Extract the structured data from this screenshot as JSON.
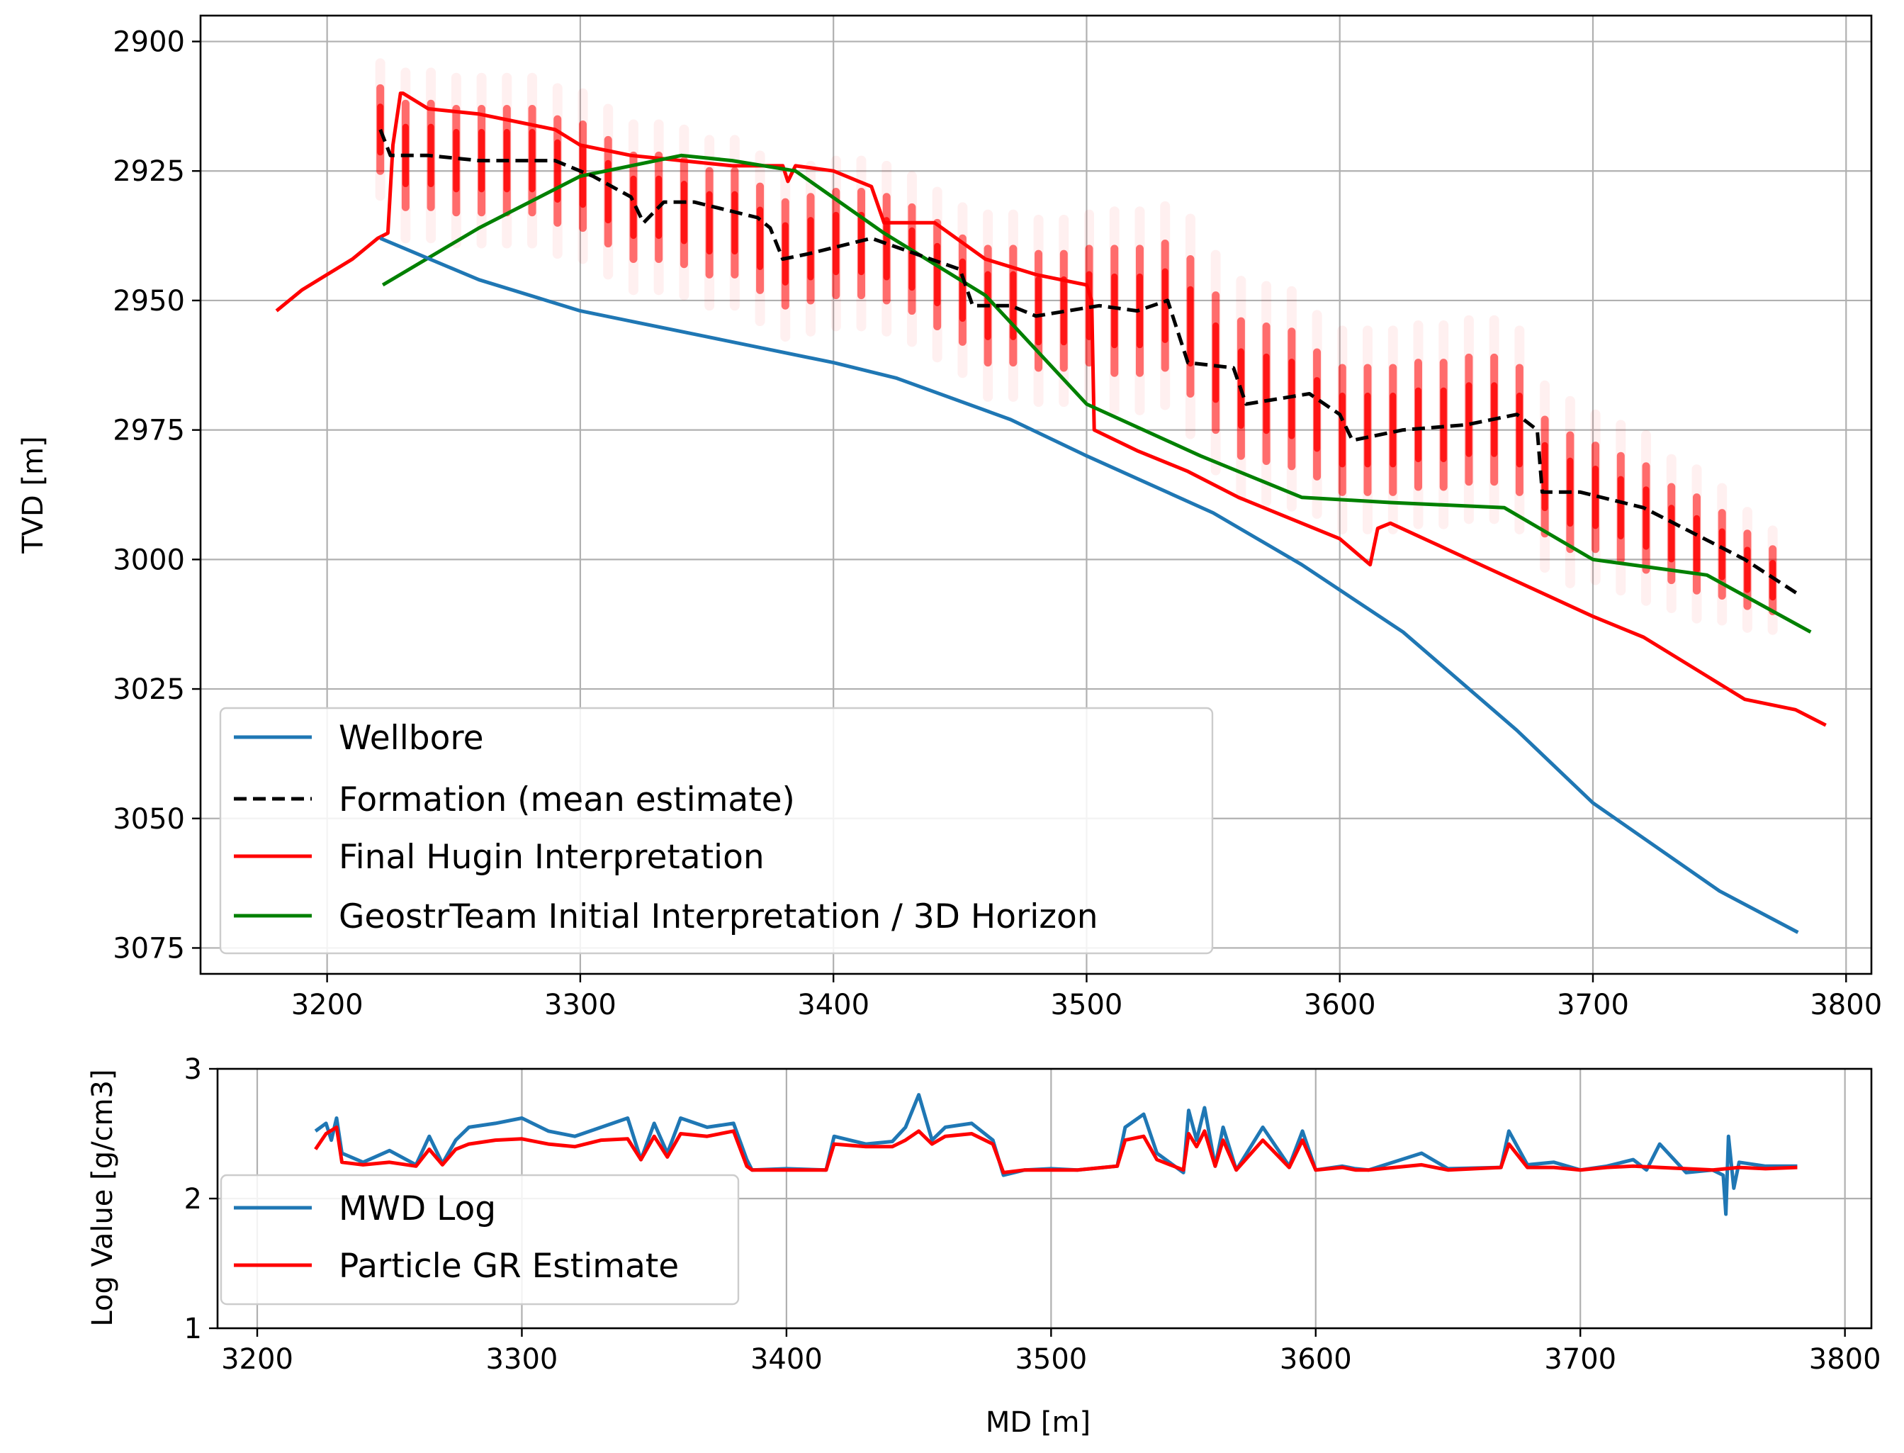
{
  "chart_data": [
    {
      "type": "line",
      "panel": "top",
      "title": "",
      "xlabel": "",
      "ylabel": "TVD [m]",
      "xlim": [
        3150,
        3810
      ],
      "ylim": [
        3080,
        2895
      ],
      "y_inverted": true,
      "grid": true,
      "x_ticks": [
        3200,
        3300,
        3400,
        3500,
        3600,
        3700,
        3800
      ],
      "x_tick_labels": [
        "3200",
        "3300",
        "3400",
        "3500",
        "3600",
        "3700",
        "3800"
      ],
      "y_ticks": [
        2900,
        2925,
        2950,
        2975,
        3000,
        3025,
        3050,
        3075
      ],
      "y_tick_labels": [
        "2900",
        "2925",
        "2950",
        "2975",
        "3000",
        "3025",
        "3050",
        "3075"
      ],
      "legend_position": "lower-left",
      "series": [
        {
          "name": "Wellbore",
          "color": "#1f77b4",
          "style": "solid",
          "x": [
            3221,
            3260,
            3300,
            3350,
            3400,
            3425,
            3470,
            3500,
            3550,
            3585,
            3625,
            3670,
            3700,
            3750,
            3781
          ],
          "y": [
            2938,
            2946,
            2952,
            2957,
            2962,
            2965,
            2973,
            2980,
            2991,
            3001,
            3014,
            3033,
            3047,
            3064,
            3072
          ]
        },
        {
          "name": "Formation (mean estimate)",
          "color": "#000000",
          "style": "dashed",
          "x": [
            3221,
            3225,
            3240,
            3260,
            3290,
            3305,
            3320,
            3325,
            3333,
            3345,
            3370,
            3375,
            3380,
            3390,
            3415,
            3450,
            3455,
            3470,
            3480,
            3505,
            3520,
            3532,
            3540,
            3558,
            3563,
            3588,
            3600,
            3605,
            3625,
            3650,
            3670,
            3678,
            3680,
            3695,
            3720,
            3740,
            3760,
            3782
          ],
          "y": [
            2917,
            2922,
            2922,
            2923,
            2923,
            2926,
            2930,
            2935,
            2931,
            2931,
            2934,
            2936,
            2942,
            2941,
            2938,
            2944,
            2951,
            2951,
            2953,
            2951,
            2952,
            2950,
            2962,
            2963,
            2970,
            2968,
            2972,
            2977,
            2975,
            2974,
            2972,
            2975,
            2987,
            2987,
            2990,
            2995,
            3000,
            3007
          ]
        },
        {
          "name": "Final Hugin Interpretation",
          "color": "#ff0000",
          "style": "solid",
          "x": [
            3180,
            3190,
            3200,
            3210,
            3220,
            3224,
            3226,
            3229,
            3230,
            3240,
            3260,
            3280,
            3290,
            3300,
            3320,
            3340,
            3360,
            3380,
            3382,
            3385,
            3400,
            3410,
            3415,
            3420,
            3440,
            3460,
            3480,
            3500,
            3502,
            3503,
            3520,
            3540,
            3560,
            3580,
            3600,
            3612,
            3615,
            3620,
            3660,
            3700,
            3720,
            3760,
            3780,
            3792
          ],
          "y": [
            2952,
            2948,
            2945,
            2942,
            2938,
            2937,
            2920,
            2910,
            2910,
            2913,
            2914,
            2916,
            2917,
            2920,
            2922,
            2923,
            2924,
            2924,
            2927,
            2924,
            2925,
            2927,
            2928,
            2935,
            2935,
            2942,
            2945,
            2947,
            2950,
            2975,
            2979,
            2983,
            2988,
            2992,
            2996,
            3001,
            2994,
            2993,
            3002,
            3011,
            3015,
            3027,
            3029,
            3032
          ]
        },
        {
          "name": "GeostrTeam Initial Interpretation / 3D Horizon",
          "color": "#008000",
          "style": "solid",
          "x": [
            3222,
            3260,
            3300,
            3340,
            3360,
            3385,
            3420,
            3460,
            3500,
            3545,
            3585,
            3620,
            3665,
            3700,
            3745,
            3786
          ],
          "y": [
            2947,
            2936,
            2926,
            2922,
            2923,
            2925,
            2937,
            2949,
            2970,
            2980,
            2988,
            2989,
            2990,
            3000,
            3003,
            3014
          ]
        }
      ],
      "particle_clouds": {
        "color": "#ff0000",
        "x": [
          3221,
          3231,
          3241,
          3251,
          3261,
          3271,
          3281,
          3291,
          3301,
          3311,
          3321,
          3331,
          3341,
          3351,
          3361,
          3371,
          3381,
          3391,
          3401,
          3411,
          3421,
          3431,
          3441,
          3451,
          3461,
          3471,
          3481,
          3491,
          3501,
          3511,
          3521,
          3531,
          3541,
          3551,
          3561,
          3571,
          3581,
          3591,
          3601,
          3611,
          3621,
          3631,
          3641,
          3651,
          3661,
          3671,
          3681,
          3691,
          3701,
          3711,
          3721,
          3731,
          3741,
          3751,
          3761,
          3771
        ],
        "center": [
          2917,
          2922,
          2922,
          2923,
          2923,
          2923,
          2923,
          2925,
          2926,
          2929,
          2932,
          2932,
          2933,
          2935,
          2935,
          2938,
          2941,
          2940,
          2939,
          2939,
          2940,
          2942,
          2945,
          2948,
          2951,
          2951,
          2952,
          2952,
          2951,
          2952,
          2952,
          2951,
          2955,
          2962,
          2967,
          2968,
          2969,
          2972,
          2975,
          2975,
          2975,
          2974,
          2974,
          2973,
          2973,
          2975,
          2984,
          2987,
          2988,
          2990,
          2992,
          2995,
          2997,
          2999,
          3002,
          3004
        ],
        "half_range": [
          8,
          10,
          10,
          10,
          10,
          10,
          10,
          10,
          10,
          10,
          10,
          10,
          10,
          10,
          10,
          10,
          10,
          10,
          10,
          10,
          10,
          10,
          10,
          10,
          11,
          11,
          11,
          11,
          11,
          12,
          12,
          12,
          13,
          13,
          13,
          13,
          13,
          12,
          12,
          12,
          12,
          12,
          12,
          12,
          12,
          12,
          11,
          11,
          10,
          10,
          10,
          9,
          9,
          8,
          7,
          6
        ]
      }
    },
    {
      "type": "line",
      "panel": "bottom",
      "title": "",
      "xlabel": "MD [m]",
      "ylabel": "Log Value [g/cm3]",
      "xlim": [
        3185,
        3810
      ],
      "ylim": [
        1,
        3
      ],
      "grid": true,
      "x_ticks": [
        3200,
        3300,
        3400,
        3500,
        3600,
        3700,
        3800
      ],
      "x_tick_labels": [
        "3200",
        "3300",
        "3400",
        "3500",
        "3600",
        "3700",
        "3800"
      ],
      "y_ticks": [
        1,
        2,
        3
      ],
      "y_tick_labels": [
        "1",
        "2",
        "3"
      ],
      "legend_position": "lower-left",
      "series": [
        {
          "name": "MWD Log",
          "color": "#1f77b4",
          "style": "solid",
          "x": [
            3222,
            3226,
            3228,
            3230,
            3232,
            3240,
            3250,
            3260,
            3265,
            3270,
            3275,
            3280,
            3290,
            3300,
            3310,
            3320,
            3330,
            3340,
            3345,
            3350,
            3355,
            3360,
            3370,
            3380,
            3385,
            3387,
            3400,
            3415,
            3418,
            3430,
            3440,
            3445,
            3450,
            3455,
            3460,
            3470,
            3478,
            3482,
            3490,
            3500,
            3510,
            3525,
            3528,
            3535,
            3540,
            3550,
            3552,
            3555,
            3558,
            3562,
            3565,
            3570,
            3580,
            3590,
            3595,
            3600,
            3610,
            3615,
            3620,
            3640,
            3650,
            3670,
            3673,
            3680,
            3690,
            3700,
            3710,
            3720,
            3725,
            3730,
            3740,
            3750,
            3754,
            3755,
            3756,
            3758,
            3760,
            3770,
            3782
          ],
          "y": [
            2.52,
            2.58,
            2.45,
            2.62,
            2.35,
            2.28,
            2.37,
            2.26,
            2.48,
            2.27,
            2.45,
            2.55,
            2.58,
            2.62,
            2.52,
            2.48,
            2.55,
            2.62,
            2.3,
            2.58,
            2.35,
            2.62,
            2.55,
            2.58,
            2.3,
            2.22,
            2.23,
            2.22,
            2.48,
            2.42,
            2.44,
            2.55,
            2.8,
            2.45,
            2.55,
            2.58,
            2.45,
            2.18,
            2.22,
            2.23,
            2.22,
            2.25,
            2.55,
            2.65,
            2.35,
            2.2,
            2.68,
            2.45,
            2.7,
            2.25,
            2.55,
            2.22,
            2.55,
            2.25,
            2.52,
            2.22,
            2.25,
            2.23,
            2.22,
            2.35,
            2.23,
            2.24,
            2.52,
            2.26,
            2.28,
            2.22,
            2.25,
            2.3,
            2.22,
            2.42,
            2.2,
            2.22,
            2.18,
            1.88,
            2.48,
            2.08,
            2.28,
            2.25,
            2.25
          ]
        },
        {
          "name": "Particle GR Estimate",
          "color": "#ff0000",
          "style": "solid",
          "x": [
            3222,
            3226,
            3230,
            3232,
            3240,
            3250,
            3260,
            3265,
            3270,
            3275,
            3280,
            3290,
            3300,
            3310,
            3320,
            3330,
            3340,
            3345,
            3350,
            3355,
            3360,
            3370,
            3380,
            3385,
            3387,
            3400,
            3415,
            3418,
            3430,
            3440,
            3445,
            3450,
            3455,
            3460,
            3470,
            3478,
            3482,
            3490,
            3500,
            3510,
            3525,
            3528,
            3535,
            3540,
            3550,
            3552,
            3555,
            3558,
            3562,
            3565,
            3570,
            3580,
            3590,
            3595,
            3600,
            3610,
            3615,
            3620,
            3640,
            3650,
            3670,
            3673,
            3680,
            3690,
            3700,
            3710,
            3720,
            3730,
            3740,
            3750,
            3760,
            3770,
            3782
          ],
          "y": [
            2.38,
            2.5,
            2.55,
            2.28,
            2.26,
            2.28,
            2.25,
            2.38,
            2.26,
            2.38,
            2.42,
            2.45,
            2.46,
            2.42,
            2.4,
            2.45,
            2.46,
            2.3,
            2.48,
            2.32,
            2.5,
            2.48,
            2.52,
            2.25,
            2.22,
            2.22,
            2.22,
            2.42,
            2.4,
            2.4,
            2.45,
            2.52,
            2.42,
            2.48,
            2.5,
            2.42,
            2.2,
            2.22,
            2.22,
            2.22,
            2.25,
            2.45,
            2.48,
            2.3,
            2.22,
            2.5,
            2.4,
            2.52,
            2.25,
            2.45,
            2.22,
            2.45,
            2.24,
            2.45,
            2.22,
            2.24,
            2.22,
            2.22,
            2.26,
            2.22,
            2.24,
            2.42,
            2.24,
            2.24,
            2.22,
            2.24,
            2.25,
            2.24,
            2.23,
            2.22,
            2.24,
            2.23,
            2.24
          ]
        }
      ]
    }
  ]
}
